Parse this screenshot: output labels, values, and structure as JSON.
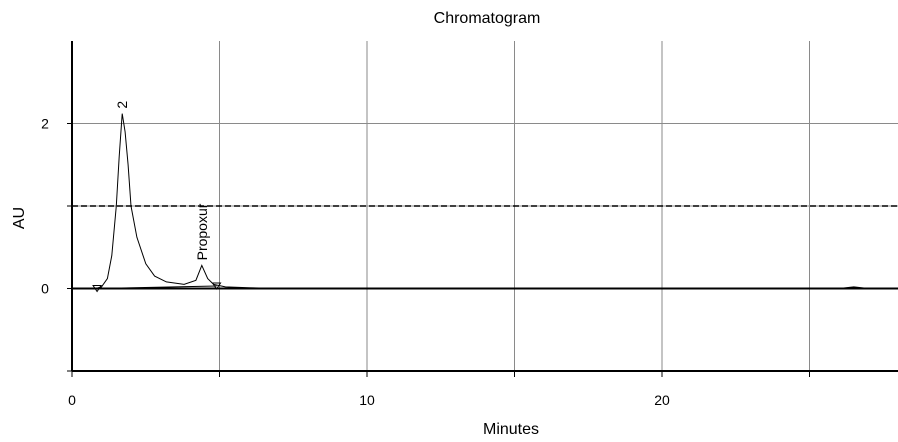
{
  "chart_data": {
    "type": "line",
    "title": "Chromatogram",
    "xlabel": "Minutes",
    "ylabel": "AU",
    "xlim": [
      0,
      28
    ],
    "ylim": [
      -1,
      3
    ],
    "x_ticks": [
      0,
      10,
      20
    ],
    "x_tick_labels": [
      "0",
      "10",
      "20"
    ],
    "y_ticks": [
      0,
      2
    ],
    "y_tick_labels": [
      "0",
      "2"
    ],
    "x_gridlines": [
      0,
      5,
      10,
      15,
      20,
      25
    ],
    "y_gridlines": [
      -1,
      0,
      1,
      2
    ],
    "grid": true,
    "threshold": {
      "y": 1.0,
      "style": "dashed"
    },
    "series": [
      {
        "values_xy": [
          [
            0.8,
            0.0
          ],
          [
            1.0,
            0.02
          ],
          [
            1.2,
            0.12
          ],
          [
            1.35,
            0.4
          ],
          [
            1.5,
            1.0
          ],
          [
            1.6,
            1.6
          ],
          [
            1.7,
            2.12
          ],
          [
            1.8,
            1.9
          ],
          [
            1.9,
            1.5
          ],
          [
            2.0,
            1.0
          ],
          [
            2.2,
            0.62
          ],
          [
            2.5,
            0.3
          ],
          [
            2.8,
            0.15
          ],
          [
            3.2,
            0.08
          ],
          [
            3.8,
            0.05
          ],
          [
            4.2,
            0.1
          ],
          [
            4.4,
            0.28
          ],
          [
            4.6,
            0.12
          ],
          [
            4.8,
            0.05
          ],
          [
            5.2,
            0.02
          ],
          [
            6.0,
            0.01
          ],
          [
            7.0,
            0.0
          ],
          [
            10.0,
            0.0
          ],
          [
            20.0,
            0.0
          ],
          [
            26.0,
            0.0
          ],
          [
            26.5,
            0.02
          ],
          [
            27.0,
            0.0
          ],
          [
            28.0,
            0.0
          ]
        ]
      }
    ],
    "baseline_segments": [
      [
        [
          0.8,
          0.0
        ],
        [
          4.9,
          0.03
        ]
      ]
    ],
    "peaks": [
      {
        "label": "2",
        "x": 1.7,
        "y": 2.12
      },
      {
        "label": "Propoxur",
        "x": 4.4,
        "y": 0.28
      }
    ],
    "markers": [
      {
        "x": 0.85,
        "y": 0.0,
        "shape": "triangle"
      },
      {
        "x": 4.9,
        "y": 0.03,
        "shape": "triangle"
      }
    ]
  }
}
